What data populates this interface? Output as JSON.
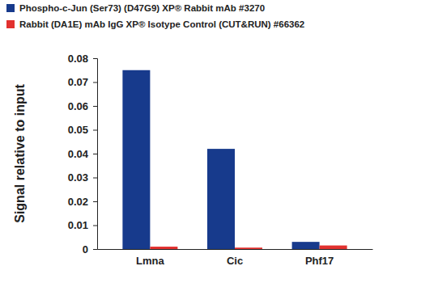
{
  "chart_data": {
    "type": "bar",
    "y_label": "Signal relative to input",
    "categories": [
      "Lmna",
      "Cic",
      "Phf17"
    ],
    "series": [
      {
        "name": "Phospho-c-Jun (Ser73) (D47G9) XP® Rabbit mAb #3270",
        "color": "#173a8c",
        "values": [
          0.075,
          0.042,
          0.003
        ]
      },
      {
        "name": "Rabbit (DA1E) mAb IgG XP® Isotype Control (CUT&RUN) #66362",
        "color": "#e2312f",
        "values": [
          0.001,
          0.0006,
          0.0015
        ]
      }
    ],
    "ylim": [
      0,
      0.08
    ],
    "yticks": [
      0,
      0.01,
      0.02,
      0.03,
      0.04,
      0.05,
      0.06,
      0.07,
      0.08
    ],
    "grid": false,
    "legend": "top-left"
  }
}
